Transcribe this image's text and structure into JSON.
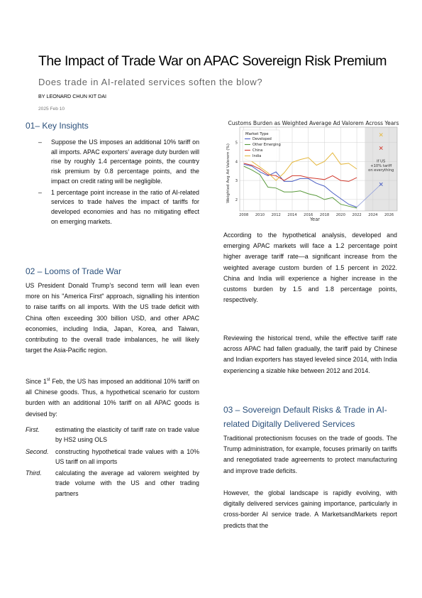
{
  "header": {
    "title": "The Impact of Trade War on APAC Sovereign Risk Premium",
    "subtitle": "Does trade in AI-related services soften the blow?",
    "byline": "BY LEONARD CHUN KIT DAI",
    "date": "2025 Feb 10"
  },
  "section1": {
    "heading": "01– Key Insights",
    "bullets": [
      "Suppose the US imposes an additional 10% tariff on all imports. APAC exporters’ average duty burden will rise by roughly 1.4 percentage points, the country risk premium by 0.8 percentage points, and the impact on credit rating will be negligible.",
      "1 percentage point increase in the ratio of AI-related services to trade halves the impact of tariffs for developed economies and has no mitigating effect on emerging markets."
    ]
  },
  "section2": {
    "heading": "02 – Looms of Trade War",
    "p1": "US President Donald Trump’s second term will lean even more on his \"America First\" approach, signalling his intention to raise tariffs on all imports. With the US trade deficit with China often exceeding 300 billion USD, and other APAC economies, including India, Japan, Korea, and Taiwan, contributing to the overall trade imbalances, he will likely target the Asia-Pacific region.",
    "p2_pre": "Since 1",
    "p2_sup": "st",
    "p2_post": " Feb, the US has imposed an additional 10% tariff on all Chinese goods. Thus, a hypothetical scenario for custom burden with an additional 10% tariff on all APAC goods is devised by:",
    "steps": [
      {
        "label": "First.",
        "text": "estimating the elasticity of tariff rate on trade value by HS2 using OLS"
      },
      {
        "label": "Second.",
        "text": "constructing hypothetical trade values with a 10% US tariff on all imports"
      },
      {
        "label": "Third.",
        "text": "calculating the average ad valorem weighted by trade volume with the US and other trading partners"
      }
    ]
  },
  "right": {
    "p1": "According to the hypothetical analysis, developed and emerging APAC markets will face a 1.2 percentage point higher average tariff rate—a significant increase from the weighted average custom burden of 1.5 percent in 2022. China and India will experience a higher increase in the customs burden by 1.5 and 1.8 percentage points, respectively.",
    "p2": "Reviewing the historical trend, while the effective tariff rate across APAC had fallen gradually, the tariff paid by Chinese and Indian exporters has stayed leveled since 2014, with India experiencing a sizable hike between 2012 and 2014.",
    "heading3": "03 – Sovereign Default Risks & Trade in AI-related Digitally Delivered Services",
    "p3": "Traditional protectionism focuses on the trade of goods. The Trump administration, for example, focuses primarily on tariffs and renegotiated trade agreements to protect manufacturing and improve trade deficits.",
    "p4": "However, the global landscape is rapidly evolving, with digitally delivered services gaining importance, particularly in cross-border AI service trade. A MarketsandMarkets report predicts that the"
  },
  "chart_data": {
    "type": "line",
    "title": "Customs Burden as Weighted Average Ad Valorem Across Years",
    "xlabel": "Year",
    "ylabel": "Weighted Avg Ad Valorem (%)",
    "xlim": [
      2007.5,
      2027
    ],
    "ylim": [
      1.4,
      5.8
    ],
    "xticks": [
      2008,
      2010,
      2012,
      2014,
      2016,
      2018,
      2020,
      2022,
      2024,
      2026
    ],
    "yticks": [
      2,
      3,
      4,
      5
    ],
    "legend_title": "Market Type",
    "legend_position": "top-left",
    "shaded_region": [
      2023,
      2027
    ],
    "annotation": "If US\n+10% tariff\non everything",
    "series": [
      {
        "name": "Developed",
        "color": "#4b5fc4",
        "x": [
          2008,
          2009,
          2010,
          2011,
          2012,
          2013,
          2014,
          2015,
          2016,
          2017,
          2018,
          2019,
          2020,
          2021,
          2022
        ],
        "y": [
          3.85,
          3.75,
          3.45,
          3.25,
          3.45,
          2.95,
          2.95,
          3.1,
          3.1,
          2.85,
          2.7,
          2.35,
          2.05,
          1.75,
          1.6
        ]
      },
      {
        "name": "Other Emerging",
        "color": "#5a9a3c",
        "x": [
          2008,
          2009,
          2010,
          2011,
          2012,
          2013,
          2014,
          2015,
          2016,
          2017,
          2018,
          2019,
          2020,
          2021,
          2022
        ],
        "y": [
          3.75,
          3.55,
          3.3,
          2.65,
          2.6,
          2.4,
          2.4,
          2.45,
          2.3,
          2.2,
          2.0,
          2.1,
          1.75,
          1.65,
          1.55
        ]
      },
      {
        "name": "China",
        "color": "#d23b2f",
        "x": [
          2008,
          2009,
          2010,
          2011,
          2012,
          2013,
          2014,
          2015,
          2016,
          2017,
          2018,
          2019,
          2020,
          2021,
          2022
        ],
        "y": [
          3.9,
          3.8,
          3.6,
          3.3,
          3.25,
          3.0,
          3.25,
          3.25,
          3.15,
          3.1,
          3.05,
          3.25,
          3.0,
          2.95,
          3.15
        ]
      },
      {
        "name": "India",
        "color": "#e5b83f",
        "x": [
          2008,
          2009,
          2010,
          2011,
          2012,
          2013,
          2014,
          2015,
          2016,
          2017,
          2018,
          2019,
          2020,
          2021,
          2022
        ],
        "y": [
          4.15,
          4.0,
          3.7,
          3.4,
          3.0,
          3.4,
          3.95,
          4.1,
          4.2,
          3.8,
          4.0,
          4.45,
          3.85,
          3.9,
          3.6
        ]
      }
    ],
    "scenario_points": [
      {
        "name": "India",
        "x": 2025,
        "y": 5.4,
        "marker": "x",
        "color": "#e5b83f"
      },
      {
        "name": "China",
        "x": 2025,
        "y": 4.7,
        "marker": "x",
        "color": "#d23b2f"
      },
      {
        "name": "Developed",
        "x": 2025,
        "y": 2.8,
        "marker": "x",
        "color": "#4b5fc4"
      }
    ],
    "projection_line": {
      "from": [
        2022,
        1.6
      ],
      "to": [
        2025,
        2.8
      ],
      "color": "#9aa6dc"
    }
  }
}
